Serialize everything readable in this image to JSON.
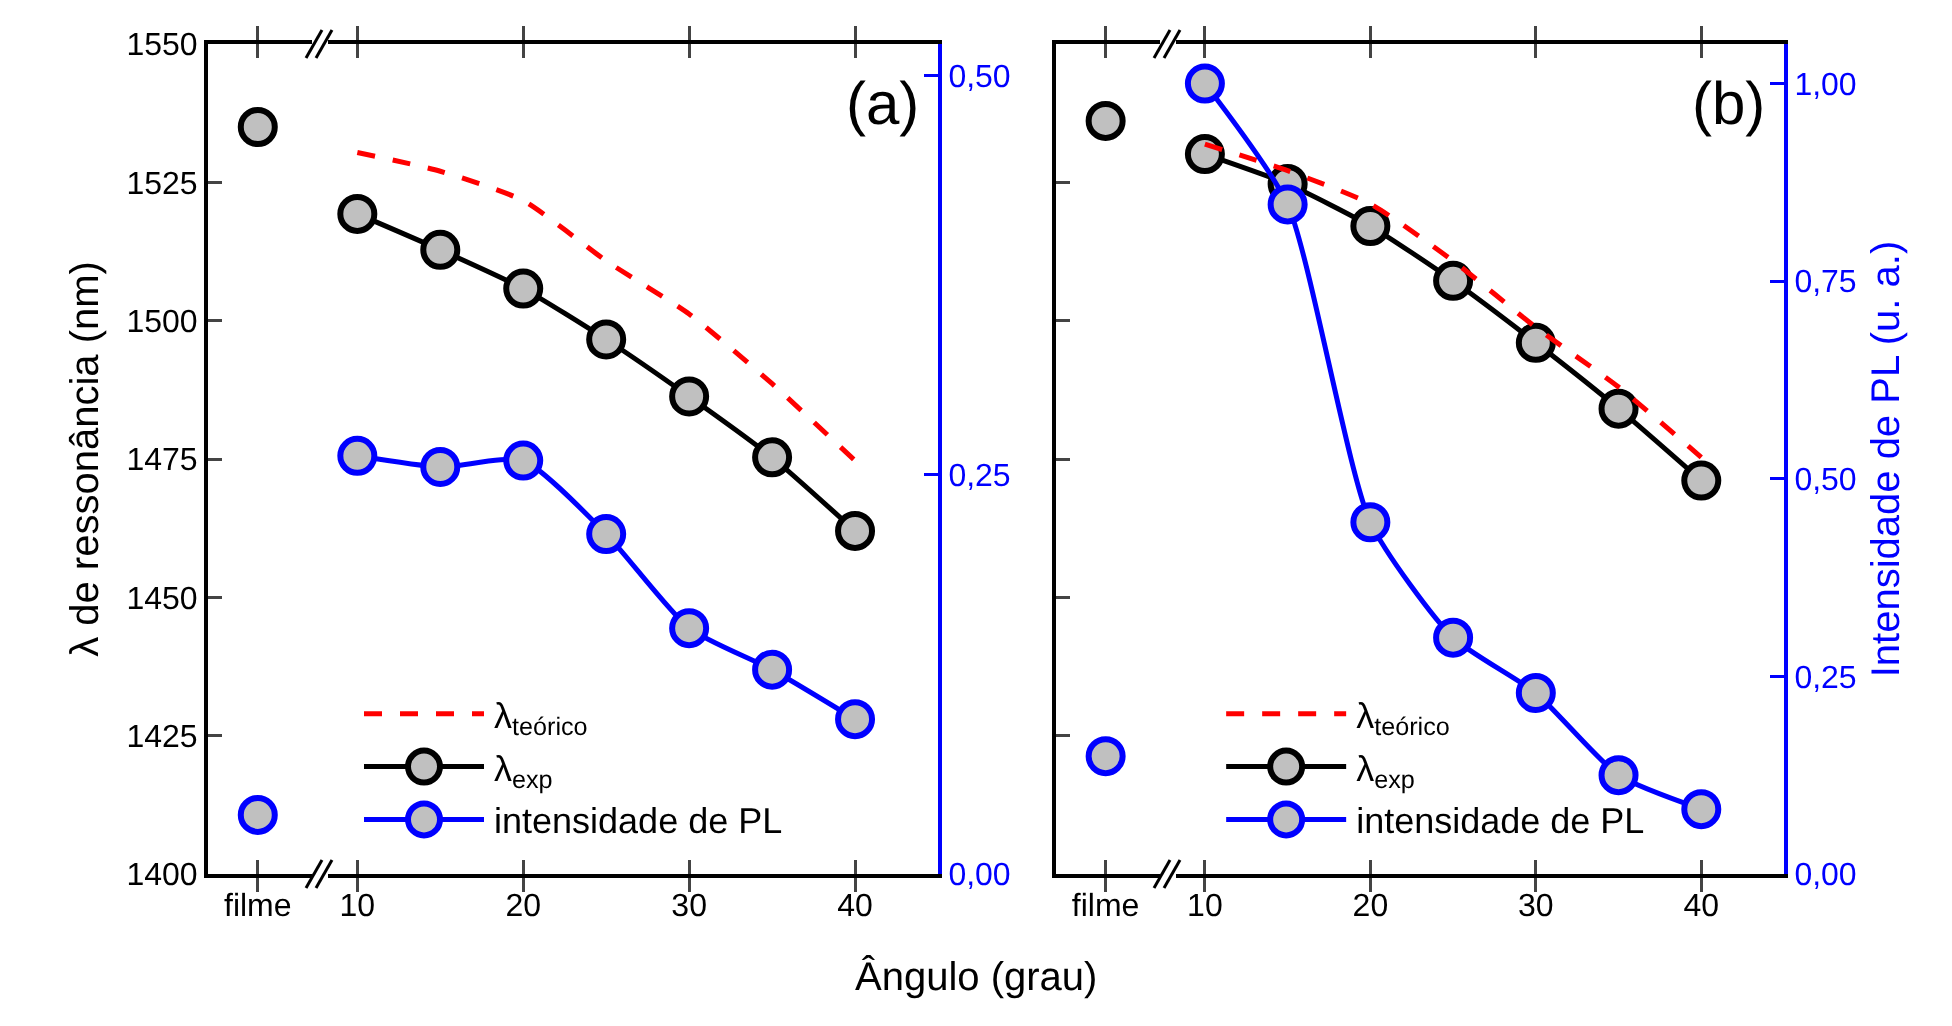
{
  "chart_data": [
    {
      "type": "line",
      "annotations": [
        "(a)"
      ],
      "xlabel": "Ângulo (grau)",
      "ylabel": "λ de ressonância (nm)",
      "xlim": [
        1,
        45
      ],
      "xticks": [
        {
          "value": 4,
          "label": "filme"
        },
        10,
        20,
        30,
        40
      ],
      "ylim": [
        1400,
        1550
      ],
      "yticks": [
        1400,
        1425,
        1450,
        1475,
        1500,
        1525,
        1550
      ],
      "y2lim": [
        0,
        0.52
      ],
      "y2ticks": [
        {
          "value": 0,
          "label": "0,00"
        },
        {
          "value": 0.25,
          "label": "0,25"
        },
        {
          "value": 0.5,
          "label": "0,50"
        }
      ],
      "legend": "bottom",
      "series": [
        {
          "name": "λ$_{teórico}$",
          "color": "#ff0000",
          "line_style": "dashed",
          "marker": "none",
          "x": [
            10,
            15,
            20,
            25,
            30,
            35,
            40
          ],
          "values": [
            1530.4,
            1527,
            1521.7,
            1510.8,
            1501.2,
            1488.6,
            1474.7
          ]
        },
        {
          "name": "λ$_{exp}$",
          "color": "#000000",
          "line_style": "solid",
          "marker": "circle",
          "x": [
            10,
            15,
            20,
            25,
            30,
            35,
            40
          ],
          "values": [
            1519.3,
            1512.8,
            1505.8,
            1496.6,
            1486.3,
            1475.3,
            1462
          ]
        },
        {
          "name": "intensidade de PL",
          "color": "#0000ff",
          "axis": "y2",
          "line_style": "solid",
          "marker": "circle",
          "x": [
            10,
            15,
            20,
            25,
            30,
            35,
            40
          ],
          "values": [
            0.262,
            0.255,
            0.259,
            0.213,
            0.154,
            0.128,
            0.097
          ]
        },
        {
          "type": "scatter",
          "color": "#000000",
          "marker": "circle",
          "x": [
            4
          ],
          "values": [
            1535
          ]
        },
        {
          "type": "scatter",
          "color": "#0000ff",
          "axis": "y2",
          "marker": "circle",
          "x": [
            4
          ],
          "values": [
            0.037
          ]
        }
      ]
    },
    {
      "type": "line",
      "annotations": [
        "(b)"
      ],
      "y2label": "Intensidade de PL (u. a.)",
      "xlim": [
        1,
        45
      ],
      "xticks": [
        {
          "value": 4,
          "label": "filme"
        },
        10,
        20,
        30,
        40
      ],
      "ylim": [
        1400,
        1550
      ],
      "yticks": [
        1400,
        1425,
        1450,
        1475,
        1500,
        1525,
        1550
      ],
      "tick_labels": "x",
      "y2lim": [
        0,
        1.05
      ],
      "y2ticks": [
        {
          "value": 0,
          "label": "0,00"
        },
        {
          "value": 0.25,
          "label": "0,25"
        },
        {
          "value": 0.5,
          "label": "0,50"
        },
        {
          "value": 0.75,
          "label": "0,75"
        },
        {
          "value": 1,
          "label": "1,00"
        }
      ],
      "legend": "bottom",
      "series": [
        {
          "name": "λ$_{teórico}$",
          "color": "#ff0000",
          "line_style": "dashed",
          "marker": "none",
          "x": [
            10,
            15,
            20,
            25,
            30,
            35,
            40
          ],
          "values": [
            1531.9,
            1527.1,
            1521.1,
            1510.8,
            1498.8,
            1488,
            1475.3
          ]
        },
        {
          "name": "λ$_{exp}$",
          "color": "#000000",
          "line_style": "solid",
          "marker": "circle",
          "x": [
            10,
            15,
            20,
            25,
            30,
            35,
            40
          ],
          "values": [
            1530.1,
            1524.7,
            1517.1,
            1507.2,
            1496,
            1484.1,
            1471.1
          ]
        },
        {
          "name": "intensidade de PL",
          "color": "#0000ff",
          "axis": "y2",
          "line_style": "solid",
          "marker": "circle",
          "x": [
            10,
            15,
            20,
            25,
            30,
            35,
            40
          ],
          "values": [
            1.0,
            0.847,
            0.445,
            0.299,
            0.229,
            0.125,
            0.082
          ]
        },
        {
          "type": "scatter",
          "color": "#000000",
          "marker": "circle",
          "x": [
            4
          ],
          "values": [
            1536.1
          ]
        },
        {
          "type": "scatter",
          "color": "#0000ff",
          "axis": "y2",
          "marker": "circle",
          "x": [
            4
          ],
          "values": [
            0.149
          ]
        }
      ]
    }
  ]
}
